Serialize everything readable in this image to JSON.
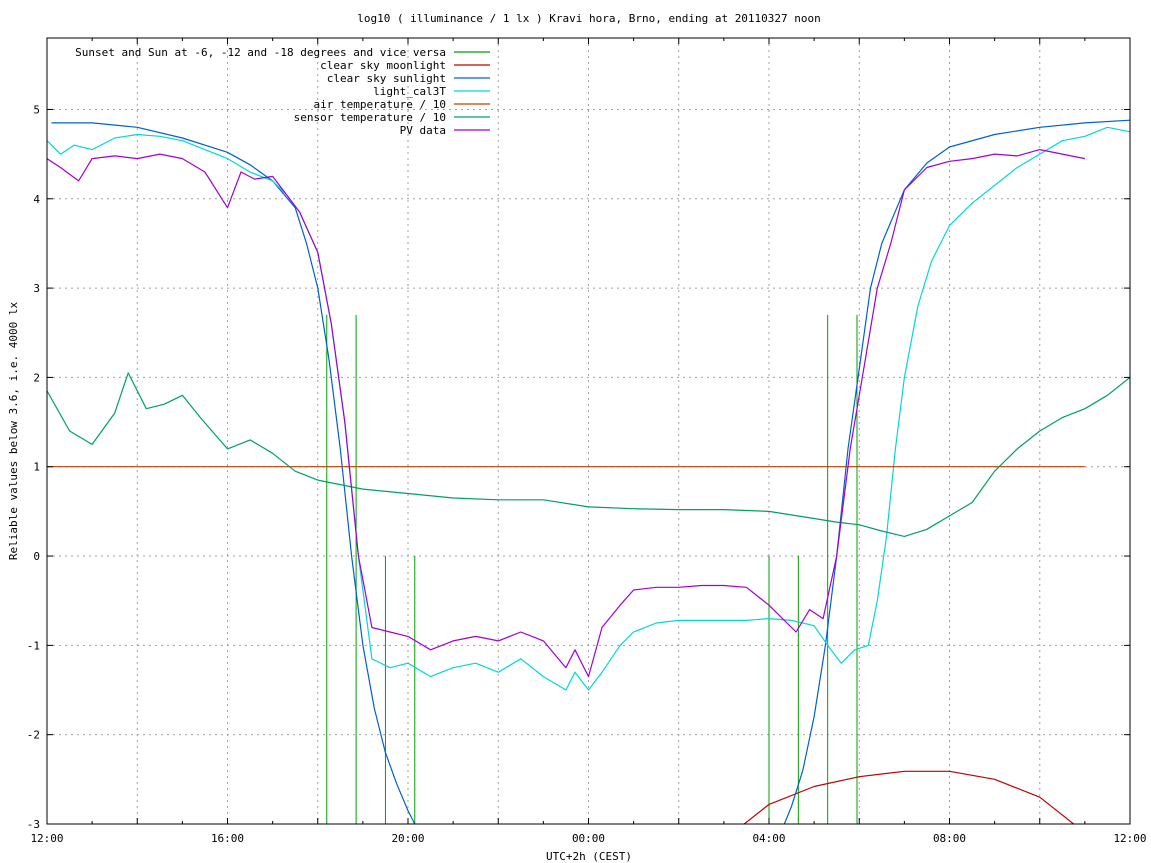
{
  "chart_data": {
    "type": "line",
    "title": "log10 ( illuminance / 1 lx ) Kravi hora, Brno, ending at 20110327 noon",
    "xlabel": "UTC+2h (CEST)",
    "ylabel": "Reliable values below 3.6, i.e. 4000 lx",
    "xlim": [
      12,
      36
    ],
    "ylim": [
      -3,
      5.8
    ],
    "grid": true,
    "legend_position": "top-left",
    "x_ticks": [
      {
        "x": 12,
        "label": "12:00"
      },
      {
        "x": 16,
        "label": "16:00"
      },
      {
        "x": 20,
        "label": "20:00"
      },
      {
        "x": 24,
        "label": "00:00"
      },
      {
        "x": 28,
        "label": "04:00"
      },
      {
        "x": 32,
        "label": "08:00"
      },
      {
        "x": 36,
        "label": "12:00"
      }
    ],
    "y_ticks": [
      {
        "y": -3,
        "label": "-3"
      },
      {
        "y": -2,
        "label": "-2"
      },
      {
        "y": -1,
        "label": "-1"
      },
      {
        "y": 0,
        "label": "0"
      },
      {
        "y": 1,
        "label": "1"
      },
      {
        "y": 2,
        "label": "2"
      },
      {
        "y": 3,
        "label": "3"
      },
      {
        "y": 4,
        "label": "4"
      },
      {
        "y": 5,
        "label": "5"
      }
    ],
    "series": [
      {
        "name": "Sunset and Sun at -6, -12 and -18 degrees and vice versa",
        "color": "#00a000",
        "style": "sticks",
        "x": [
          18.2,
          18.85,
          19.5,
          20.15,
          28.0,
          28.65,
          29.3,
          29.95
        ],
        "y": [
          2.7,
          2.7,
          0,
          0,
          0,
          0,
          2.7,
          2.7
        ]
      },
      {
        "name": "clear sky moonlight",
        "color": "#c00000",
        "x": [
          27.2,
          28.0,
          29.0,
          30.0,
          31.0,
          32.0,
          33.0,
          34.0,
          35.0
        ],
        "y": [
          -3.1,
          -2.78,
          -2.58,
          -2.47,
          -2.41,
          -2.41,
          -2.5,
          -2.7,
          -3.1
        ]
      },
      {
        "name": "clear sky sunlight",
        "color": "#0060d0",
        "x": [
          12.1,
          13,
          14,
          15,
          16,
          16.5,
          17,
          17.5,
          17.75,
          18,
          18.25,
          18.5,
          18.75,
          19,
          19.25,
          19.5,
          19.75,
          20.0,
          20.2,
          28.3,
          28.5,
          28.75,
          29,
          29.25,
          29.5,
          29.75,
          30,
          30.25,
          30.5,
          31,
          31.5,
          32,
          33,
          34,
          35,
          36
        ],
        "y": [
          4.85,
          4.85,
          4.8,
          4.68,
          4.52,
          4.38,
          4.2,
          3.9,
          3.5,
          3.0,
          2.2,
          1.2,
          0.0,
          -1.0,
          -1.7,
          -2.2,
          -2.55,
          -2.85,
          -3.05,
          -3.05,
          -2.8,
          -2.4,
          -1.8,
          -1.0,
          0.0,
          1.2,
          2.1,
          3.0,
          3.5,
          4.1,
          4.4,
          4.58,
          4.72,
          4.8,
          4.85,
          4.88
        ]
      },
      {
        "name": "light_cal3T",
        "color": "#00d8d8",
        "x": [
          12,
          12.3,
          12.6,
          13,
          13.5,
          14,
          14.5,
          15,
          15.5,
          16,
          16.5,
          17,
          17.3,
          17.6,
          18,
          18.3,
          18.6,
          18.9,
          19.2,
          19.6,
          20,
          20.5,
          21,
          21.5,
          22,
          22.5,
          23,
          23.5,
          23.7,
          24,
          24.3,
          24.7,
          25,
          25.5,
          26,
          26.5,
          27,
          27.5,
          28,
          28.5,
          29,
          29.3,
          29.6,
          29.9,
          30.2,
          30.4,
          30.6,
          30.8,
          31,
          31.3,
          31.6,
          32,
          32.5,
          33,
          33.5,
          34,
          34.5,
          35,
          35.5,
          36
        ],
        "y": [
          4.65,
          4.5,
          4.6,
          4.55,
          4.68,
          4.72,
          4.7,
          4.65,
          4.55,
          4.45,
          4.3,
          4.2,
          4.05,
          3.85,
          3.4,
          2.6,
          1.5,
          0.0,
          -1.15,
          -1.25,
          -1.2,
          -1.35,
          -1.25,
          -1.2,
          -1.3,
          -1.15,
          -1.35,
          -1.5,
          -1.3,
          -1.5,
          -1.3,
          -1.0,
          -0.85,
          -0.75,
          -0.72,
          -0.72,
          -0.72,
          -0.72,
          -0.7,
          -0.72,
          -0.78,
          -1.0,
          -1.2,
          -1.05,
          -1.0,
          -0.5,
          0.2,
          1.2,
          2.0,
          2.8,
          3.3,
          3.7,
          3.95,
          4.15,
          4.35,
          4.5,
          4.65,
          4.7,
          4.8,
          4.75
        ]
      },
      {
        "name": "air temperature / 10",
        "color": "#c04000",
        "x": [
          12,
          35
        ],
        "y": [
          1.0,
          1.0
        ]
      },
      {
        "name": "sensor temperature / 10",
        "color": "#00a060",
        "x": [
          12,
          12.5,
          13,
          13.5,
          13.8,
          14.2,
          14.6,
          15,
          15.4,
          16,
          16.5,
          17,
          17.5,
          18,
          19,
          20,
          21,
          22,
          23,
          24,
          25,
          26,
          27,
          28,
          29,
          29.5,
          30,
          30.5,
          31,
          31.5,
          32,
          32.5,
          33,
          33.5,
          34,
          34.5,
          35,
          35.5,
          36
        ],
        "y": [
          1.85,
          1.4,
          1.25,
          1.6,
          2.05,
          1.65,
          1.7,
          1.8,
          1.55,
          1.2,
          1.3,
          1.15,
          0.95,
          0.85,
          0.75,
          0.7,
          0.65,
          0.63,
          0.63,
          0.55,
          0.53,
          0.52,
          0.52,
          0.5,
          0.42,
          0.38,
          0.35,
          0.28,
          0.22,
          0.3,
          0.45,
          0.6,
          0.95,
          1.2,
          1.4,
          1.55,
          1.65,
          1.8,
          2.0
        ]
      },
      {
        "name": "PV data",
        "color": "#a000d8",
        "x": [
          12,
          12.3,
          12.7,
          13,
          13.5,
          14,
          14.5,
          15,
          15.5,
          16,
          16.3,
          16.6,
          17,
          17.3,
          17.6,
          18,
          18.3,
          18.6,
          18.9,
          19.2,
          19.6,
          20,
          20.5,
          21,
          21.5,
          22,
          22.5,
          23,
          23.5,
          23.7,
          24,
          24.3,
          24.7,
          25,
          25.5,
          26,
          26.5,
          27,
          27.5,
          28,
          28.3,
          28.6,
          28.9,
          29.2,
          29.5,
          29.8,
          30.1,
          30.4,
          30.7,
          31,
          31.5,
          32,
          32.5,
          33,
          33.5,
          34,
          34.5,
          35
        ],
        "y": [
          4.45,
          4.35,
          4.2,
          4.45,
          4.48,
          4.45,
          4.5,
          4.45,
          4.3,
          3.9,
          4.3,
          4.22,
          4.25,
          4.05,
          3.85,
          3.4,
          2.6,
          1.5,
          0.0,
          -0.8,
          -0.85,
          -0.9,
          -1.05,
          -0.95,
          -0.9,
          -0.95,
          -0.85,
          -0.95,
          -1.25,
          -1.05,
          -1.35,
          -0.8,
          -0.55,
          -0.38,
          -0.35,
          -0.35,
          -0.33,
          -0.33,
          -0.35,
          -0.55,
          -0.7,
          -0.85,
          -0.6,
          -0.7,
          0.0,
          1.2,
          2.1,
          3.0,
          3.5,
          4.1,
          4.35,
          4.42,
          4.45,
          4.5,
          4.48,
          4.55,
          4.5,
          4.45
        ]
      }
    ]
  }
}
